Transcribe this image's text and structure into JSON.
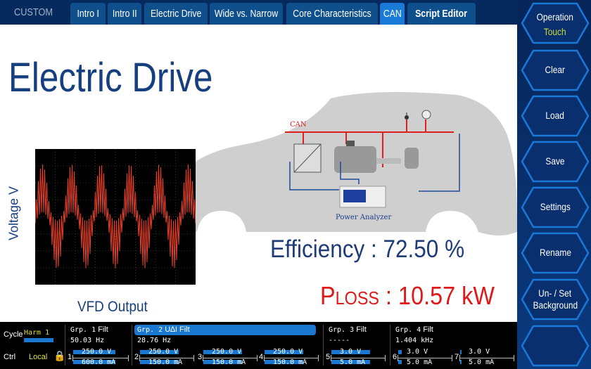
{
  "header": {
    "brand": "CUSTOM",
    "tabs": [
      {
        "label": "Intro I"
      },
      {
        "label": "Intro II"
      },
      {
        "label": "Electric Drive"
      },
      {
        "label": "Wide vs. Narrow"
      },
      {
        "label": "Core Characteristics"
      },
      {
        "label": "CAN",
        "active": true
      },
      {
        "label": "Script Editor"
      }
    ]
  },
  "side": {
    "buttons": [
      {
        "label": "Operation",
        "sub": "Touch"
      },
      {
        "label": "Clear"
      },
      {
        "label": "Load"
      },
      {
        "label": "Save"
      },
      {
        "label": "Settings"
      },
      {
        "label": "Rename"
      },
      {
        "label": "Un- / Set",
        "sub2": "Background"
      },
      {
        "label": ""
      }
    ]
  },
  "main": {
    "title": "Electric Drive",
    "scope_ylabel": "Voltage V",
    "scope_caption": "VFD Output",
    "diagram": {
      "can": "CAN",
      "analyzer": "Power Analyzer"
    },
    "efficiency": "Efficiency : 72.50 %",
    "ploss_p": "P",
    "ploss_sub": "LOSS",
    "ploss_value": " : 10.57 kW"
  },
  "status": {
    "cycle_label": "Cycle",
    "cycle_value": "Harm 1",
    "ctrl_label": "Ctrl",
    "ctrl_value": "Local",
    "groups": [
      {
        "name": "Grp. 1",
        "filt": "Filt",
        "freq": "50.03  Hz"
      },
      {
        "name": "Grp. 2",
        "extra": "U∆I",
        "filt": "Filt",
        "freq": "28.76  Hz"
      },
      {
        "name": "Grp. 3",
        "filt": "Filt",
        "freq": "-----"
      },
      {
        "name": "Grp. 4",
        "filt": "Filt",
        "freq": "1.404 kHz"
      }
    ],
    "elements": [
      {
        "n": "1",
        "v": "250.0 V",
        "i": "600.0 mA"
      },
      {
        "n": "2",
        "v": "250.0 V",
        "i": "150.0 mA"
      },
      {
        "n": "3",
        "v": "250.0 V",
        "i": "150.0 mA"
      },
      {
        "n": "4",
        "v": "250.0 V",
        "i": "150.0 mA"
      },
      {
        "n": "5",
        "v": "3.0 V",
        "i": "5.0 mA"
      },
      {
        "n": "6",
        "v": "3.0 V",
        "i": "5.0 mA"
      },
      {
        "n": "7",
        "v": "3.0 V",
        "i": "5.0 mA"
      }
    ]
  },
  "colors": {
    "accent": "#1a78d0",
    "title": "#163f80",
    "loss": "#e01818",
    "wave": "#e8402a"
  }
}
